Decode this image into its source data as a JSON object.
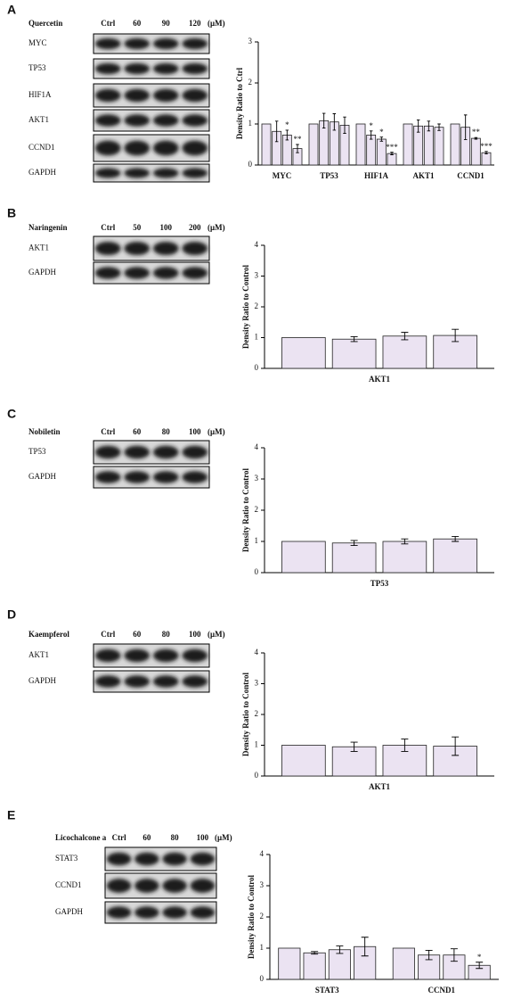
{
  "panels": [
    {
      "label": "A",
      "treatment": "Quercetin",
      "doses": [
        "Ctrl",
        "60",
        "90",
        "120"
      ],
      "unit": "(μM)",
      "proteins": [
        "MYC",
        "TP53",
        "HIF1A",
        "AKT1",
        "CCND1",
        "GAPDH"
      ]
    },
    {
      "label": "B",
      "treatment": "Naringenin",
      "doses": [
        "Ctrl",
        "50",
        "100",
        "200"
      ],
      "unit": "(μM)",
      "proteins": [
        "AKT1",
        "GAPDH"
      ]
    },
    {
      "label": "C",
      "treatment": "Nobiletin",
      "doses": [
        "Ctrl",
        "60",
        "80",
        "100"
      ],
      "unit": "(μM)",
      "proteins": [
        "TP53",
        "GAPDH"
      ]
    },
    {
      "label": "D",
      "treatment": "Kaempferol",
      "doses": [
        "Ctrl",
        "60",
        "80",
        "100"
      ],
      "unit": "(μM)",
      "proteins": [
        "AKT1",
        "GAPDH"
      ]
    },
    {
      "label": "E",
      "treatment": "Licochalcone a",
      "doses": [
        "Ctrl",
        "60",
        "80",
        "100"
      ],
      "unit": "(μM)",
      "proteins": [
        "STAT3",
        "CCND1",
        "GAPDH"
      ]
    }
  ],
  "chart_data": [
    {
      "type": "bar",
      "ylabel": "Density Ratio to Ctrl",
      "categories": [
        "MYC",
        "TP53",
        "HIF1A",
        "AKT1",
        "CCND1"
      ],
      "ylim": [
        0,
        3
      ],
      "yticks": [
        0,
        1,
        2,
        3
      ],
      "series": [
        {
          "color": "#ebe3f2",
          "values": [
            1.0,
            1.0,
            1.0,
            1.0,
            1.0
          ],
          "errors": [
            0,
            0,
            0,
            0,
            0
          ]
        },
        {
          "color": "#ebe3f2",
          "values": [
            0.82,
            1.08,
            0.73,
            0.95,
            0.92
          ],
          "errors": [
            0.25,
            0.18,
            0.1,
            0.15,
            0.3
          ],
          "significance": [
            null,
            null,
            "*",
            null,
            null
          ]
        },
        {
          "color": "#ebe3f2",
          "values": [
            0.73,
            1.05,
            0.63,
            0.95,
            0.65
          ],
          "errors": [
            0.12,
            0.2,
            0.05,
            0.12,
            0.02
          ],
          "significance": [
            "*",
            null,
            "*",
            null,
            "**"
          ]
        },
        {
          "color": "#ebe3f2",
          "values": [
            0.4,
            0.97,
            0.28,
            0.92,
            0.3
          ],
          "errors": [
            0.1,
            0.2,
            0.03,
            0.08,
            0.03
          ],
          "significance": [
            "**",
            null,
            "***",
            null,
            "***"
          ]
        }
      ]
    },
    {
      "type": "bar",
      "ylabel": "Density Ratio to Control",
      "categories": [
        "AKT1"
      ],
      "ylim": [
        0,
        4
      ],
      "yticks": [
        0,
        1,
        2,
        3,
        4
      ],
      "series": [
        {
          "color": "#ebe3f2",
          "values": [
            1.0
          ],
          "errors": [
            0
          ]
        },
        {
          "color": "#ebe3f2",
          "values": [
            0.95
          ],
          "errors": [
            0.08
          ]
        },
        {
          "color": "#ebe3f2",
          "values": [
            1.05
          ],
          "errors": [
            0.12
          ]
        },
        {
          "color": "#ebe3f2",
          "values": [
            1.07
          ],
          "errors": [
            0.2
          ]
        }
      ]
    },
    {
      "type": "bar",
      "ylabel": "Density Ratio to Control",
      "categories": [
        "TP53"
      ],
      "ylim": [
        0,
        4
      ],
      "yticks": [
        0,
        1,
        2,
        3,
        4
      ],
      "series": [
        {
          "color": "#ebe3f2",
          "values": [
            1.0
          ],
          "errors": [
            0
          ]
        },
        {
          "color": "#ebe3f2",
          "values": [
            0.95
          ],
          "errors": [
            0.08
          ]
        },
        {
          "color": "#ebe3f2",
          "values": [
            1.0
          ],
          "errors": [
            0.08
          ]
        },
        {
          "color": "#ebe3f2",
          "values": [
            1.08
          ],
          "errors": [
            0.08
          ]
        }
      ]
    },
    {
      "type": "bar",
      "ylabel": "Density Ratio to Control",
      "categories": [
        "AKT1"
      ],
      "ylim": [
        0,
        4
      ],
      "yticks": [
        0,
        1,
        2,
        3,
        4
      ],
      "series": [
        {
          "color": "#ebe3f2",
          "values": [
            1.0
          ],
          "errors": [
            0
          ]
        },
        {
          "color": "#ebe3f2",
          "values": [
            0.95
          ],
          "errors": [
            0.15
          ]
        },
        {
          "color": "#ebe3f2",
          "values": [
            1.0
          ],
          "errors": [
            0.2
          ]
        },
        {
          "color": "#ebe3f2",
          "values": [
            0.97
          ],
          "errors": [
            0.3
          ]
        }
      ]
    },
    {
      "type": "bar",
      "ylabel": "Density Ratio to Control",
      "categories": [
        "STAT3",
        "CCND1"
      ],
      "ylim": [
        0,
        4
      ],
      "yticks": [
        0,
        1,
        2,
        3,
        4
      ],
      "series": [
        {
          "color": "#ebe3f2",
          "values": [
            1.0,
            1.0
          ],
          "errors": [
            0,
            0
          ]
        },
        {
          "color": "#ebe3f2",
          "values": [
            0.85,
            0.78
          ],
          "errors": [
            0.04,
            0.15
          ]
        },
        {
          "color": "#ebe3f2",
          "values": [
            0.95,
            0.78
          ],
          "errors": [
            0.12,
            0.2
          ]
        },
        {
          "color": "#ebe3f2",
          "values": [
            1.05,
            0.45
          ],
          "errors": [
            0.3,
            0.1
          ],
          "significance": [
            null,
            "*"
          ]
        }
      ]
    }
  ]
}
